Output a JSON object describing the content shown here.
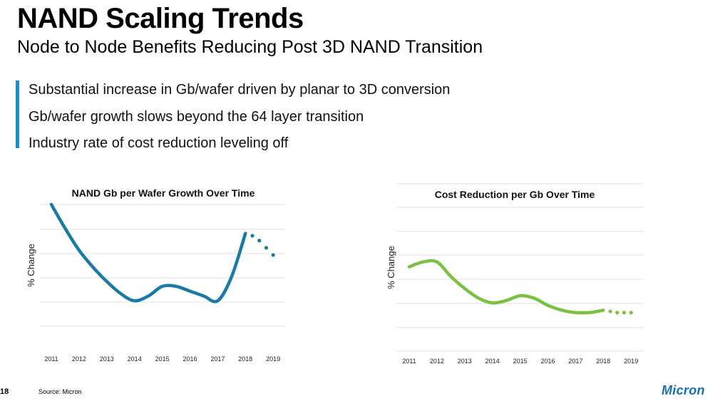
{
  "slide": {
    "title": "NAND Scaling Trends",
    "subtitle": "Node to Node Benefits Reducing Post 3D NAND Transition",
    "bullets": [
      "Substantial increase in Gb/wafer driven by planar to 3D conversion",
      "Gb/wafer growth slows beyond the 64 layer transition",
      "Industry rate of cost reduction leveling off"
    ],
    "page_number": "18",
    "source": "Source: Micron",
    "logo": "Micron"
  },
  "colors": {
    "accent_bar": "#1a90c3",
    "series_left": "#1a7aa6",
    "series_right": "#7ac142",
    "grid": "#e2e2e2",
    "logo": "#1a6fb0"
  },
  "chart_data": [
    {
      "type": "line",
      "title": "NAND Gb per Wafer Growth Over Time",
      "xlabel": "",
      "ylabel": "% Change",
      "categories": [
        "2011",
        "2012",
        "2013",
        "2014",
        "2015",
        "2016",
        "2017",
        "2018",
        "2019"
      ],
      "ylim": [
        0,
        6
      ],
      "grid": true,
      "solid_x": [
        2011.0,
        2011.5,
        2012.0,
        2012.5,
        2013.0,
        2013.5,
        2014.0,
        2014.5,
        2015.0,
        2015.5,
        2016.0,
        2016.5,
        2017.0,
        2017.5,
        2018.0
      ],
      "solid_y": [
        6.0,
        5.0,
        4.1,
        3.4,
        2.8,
        2.3,
        2.0,
        2.2,
        2.6,
        2.6,
        2.4,
        2.2,
        2.0,
        3.0,
        4.8
      ],
      "projected_x": [
        2018.0,
        2018.25,
        2018.5,
        2018.75,
        2019.0
      ],
      "projected_y": [
        4.8,
        4.7,
        4.5,
        4.2,
        3.9
      ]
    },
    {
      "type": "line",
      "title": "Cost Reduction per Gb Over Time",
      "xlabel": "",
      "ylabel": "% Change",
      "categories": [
        "2011",
        "2012",
        "2013",
        "2014",
        "2015",
        "2016",
        "2017",
        "2018",
        "2019"
      ],
      "ylim": [
        0,
        6
      ],
      "grid": true,
      "solid_x": [
        2011.0,
        2011.5,
        2012.0,
        2012.5,
        2013.0,
        2013.5,
        2014.0,
        2014.5,
        2015.0,
        2015.5,
        2016.0,
        2016.5,
        2017.0,
        2017.5,
        2018.0
      ],
      "solid_y": [
        3.5,
        3.7,
        3.7,
        3.1,
        2.6,
        2.2,
        2.0,
        2.1,
        2.3,
        2.2,
        1.9,
        1.7,
        1.6,
        1.6,
        1.7
      ],
      "projected_x": [
        2018.0,
        2018.25,
        2018.5,
        2018.75,
        2019.0
      ],
      "projected_y": [
        1.7,
        1.65,
        1.6,
        1.6,
        1.6
      ]
    }
  ]
}
